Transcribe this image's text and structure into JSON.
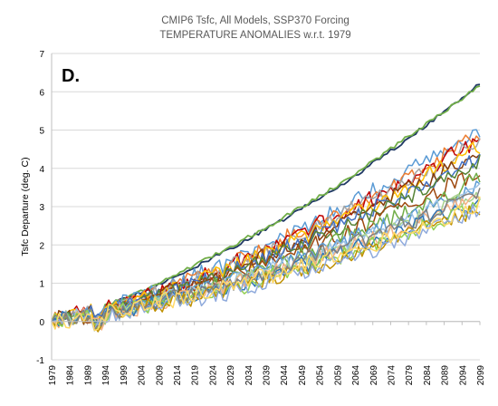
{
  "chart_data": {
    "type": "line",
    "title": "CMIP6 Tsfc, All Models, SSP370 Forcing",
    "subtitle": "TEMPERATURE ANOMALIES w.r.t. 1979",
    "panel_label": "D.",
    "xlabel": "",
    "ylabel": "Tsfc Departure (deg. C)",
    "xlim": [
      1979,
      2099
    ],
    "ylim": [
      -1,
      7
    ],
    "yticks": [
      -1,
      0,
      1,
      2,
      3,
      4,
      5,
      6,
      7
    ],
    "xticks": [
      1979,
      1984,
      1989,
      1994,
      1999,
      2004,
      2009,
      2014,
      2019,
      2024,
      2029,
      2034,
      2039,
      2044,
      2049,
      2054,
      2059,
      2064,
      2069,
      2074,
      2079,
      2084,
      2089,
      2094,
      2099
    ],
    "grid": "horizontal",
    "legend": "none",
    "series": [
      {
        "values": [
          [
            1979,
            0
          ],
          [
            2000,
            0.6
          ],
          [
            2020,
            1.45
          ],
          [
            2040,
            2.45
          ],
          [
            2060,
            3.55
          ],
          [
            2080,
            4.85
          ],
          [
            2099,
            6.2
          ]
        ],
        "color": "#1f3864"
      },
      {
        "values": [
          [
            1979,
            0
          ],
          [
            2000,
            0.62
          ],
          [
            2020,
            1.5
          ],
          [
            2040,
            2.5
          ],
          [
            2060,
            3.6
          ],
          [
            2080,
            4.9
          ],
          [
            2099,
            6.15
          ]
        ],
        "color": "#70ad47"
      },
      {
        "values": [
          [
            1979,
            0
          ],
          [
            2000,
            0.5
          ],
          [
            2020,
            1.2
          ],
          [
            2040,
            2.0
          ],
          [
            2060,
            2.95
          ],
          [
            2080,
            3.95
          ],
          [
            2099,
            5.0
          ]
        ],
        "color": "#5b9bd5"
      },
      {
        "values": [
          [
            1979,
            0
          ],
          [
            2000,
            0.5
          ],
          [
            2020,
            1.15
          ],
          [
            2040,
            1.95
          ],
          [
            2060,
            2.85
          ],
          [
            2080,
            3.8
          ],
          [
            2099,
            4.85
          ]
        ],
        "color": "#ed7d31"
      },
      {
        "values": [
          [
            1979,
            0
          ],
          [
            2000,
            0.45
          ],
          [
            2020,
            1.1
          ],
          [
            2040,
            1.9
          ],
          [
            2060,
            2.8
          ],
          [
            2080,
            3.75
          ],
          [
            2099,
            4.75
          ]
        ],
        "color": "#c00000"
      },
      {
        "values": [
          [
            1979,
            0
          ],
          [
            2000,
            0.45
          ],
          [
            2020,
            1.1
          ],
          [
            2040,
            1.85
          ],
          [
            2060,
            2.75
          ],
          [
            2080,
            3.7
          ],
          [
            2099,
            4.65
          ]
        ],
        "color": "#a5a5a5"
      },
      {
        "values": [
          [
            1979,
            0
          ],
          [
            2000,
            0.45
          ],
          [
            2020,
            1.05
          ],
          [
            2040,
            1.8
          ],
          [
            2060,
            2.65
          ],
          [
            2080,
            3.6
          ],
          [
            2099,
            4.55
          ]
        ],
        "color": "#ffc000"
      },
      {
        "values": [
          [
            1979,
            0
          ],
          [
            2000,
            0.4
          ],
          [
            2020,
            1.0
          ],
          [
            2040,
            1.75
          ],
          [
            2060,
            2.6
          ],
          [
            2080,
            3.5
          ],
          [
            2099,
            4.45
          ]
        ],
        "color": "#843c0c"
      },
      {
        "values": [
          [
            1979,
            0
          ],
          [
            2000,
            0.4
          ],
          [
            2020,
            1.0
          ],
          [
            2040,
            1.7
          ],
          [
            2060,
            2.5
          ],
          [
            2080,
            3.4
          ],
          [
            2099,
            4.35
          ]
        ],
        "color": "#4472c4"
      },
      {
        "values": [
          [
            1979,
            0
          ],
          [
            2000,
            0.4
          ],
          [
            2020,
            0.95
          ],
          [
            2040,
            1.65
          ],
          [
            2060,
            2.45
          ],
          [
            2080,
            3.3
          ],
          [
            2099,
            4.2
          ]
        ],
        "color": "#548235"
      },
      {
        "values": [
          [
            1979,
            0
          ],
          [
            2000,
            0.35
          ],
          [
            2020,
            0.9
          ],
          [
            2040,
            1.55
          ],
          [
            2060,
            2.3
          ],
          [
            2080,
            3.1
          ],
          [
            2099,
            3.95
          ]
        ],
        "color": "#9e480e"
      },
      {
        "values": [
          [
            1979,
            0
          ],
          [
            2000,
            0.35
          ],
          [
            2020,
            0.85
          ],
          [
            2040,
            1.45
          ],
          [
            2060,
            2.15
          ],
          [
            2080,
            2.9
          ],
          [
            2099,
            3.7
          ]
        ],
        "color": "#70ad47"
      },
      {
        "values": [
          [
            1979,
            0
          ],
          [
            2000,
            0.35
          ],
          [
            2020,
            0.8
          ],
          [
            2040,
            1.4
          ],
          [
            2060,
            2.05
          ],
          [
            2080,
            2.8
          ],
          [
            2099,
            3.55
          ]
        ],
        "color": "#5b9bd5"
      },
      {
        "values": [
          [
            1979,
            0
          ],
          [
            2000,
            0.3
          ],
          [
            2020,
            0.8
          ],
          [
            2040,
            1.35
          ],
          [
            2060,
            2.0
          ],
          [
            2080,
            2.7
          ],
          [
            2099,
            3.45
          ]
        ],
        "color": "#9dc3e6"
      },
      {
        "values": [
          [
            1979,
            0
          ],
          [
            2000,
            0.3
          ],
          [
            2020,
            0.75
          ],
          [
            2040,
            1.3
          ],
          [
            2060,
            1.9
          ],
          [
            2080,
            2.6
          ],
          [
            2099,
            3.35
          ]
        ],
        "color": "#a9d18e"
      },
      {
        "values": [
          [
            1979,
            0
          ],
          [
            2000,
            0.3
          ],
          [
            2020,
            0.72
          ],
          [
            2040,
            1.25
          ],
          [
            2060,
            1.85
          ],
          [
            2080,
            2.55
          ],
          [
            2099,
            3.25
          ]
        ],
        "color": "#f4b183"
      },
      {
        "values": [
          [
            1979,
            0
          ],
          [
            2000,
            0.28
          ],
          [
            2020,
            0.7
          ],
          [
            2040,
            1.2
          ],
          [
            2060,
            1.8
          ],
          [
            2080,
            2.45
          ],
          [
            2099,
            3.15
          ]
        ],
        "color": "#2e75b6"
      },
      {
        "values": [
          [
            1979,
            0
          ],
          [
            2000,
            0.25
          ],
          [
            2020,
            0.65
          ],
          [
            2040,
            1.15
          ],
          [
            2060,
            1.7
          ],
          [
            2080,
            2.35
          ],
          [
            2099,
            3.05
          ]
        ],
        "color": "#92d050"
      },
      {
        "values": [
          [
            1979,
            0
          ],
          [
            2000,
            0.25
          ],
          [
            2020,
            0.65
          ],
          [
            2040,
            1.1
          ],
          [
            2060,
            1.65
          ],
          [
            2080,
            2.3
          ],
          [
            2099,
            2.95
          ]
        ],
        "color": "#bf9000"
      },
      {
        "values": [
          [
            1979,
            0
          ],
          [
            2000,
            0.22
          ],
          [
            2020,
            0.6
          ],
          [
            2040,
            1.05
          ],
          [
            2060,
            1.6
          ],
          [
            2080,
            2.2
          ],
          [
            2099,
            2.9
          ]
        ],
        "color": "#8faadc"
      },
      {
        "values": [
          [
            1979,
            0
          ],
          [
            2000,
            0.3
          ],
          [
            2020,
            0.75
          ],
          [
            2040,
            1.3
          ],
          [
            2060,
            1.95
          ],
          [
            2080,
            2.6
          ],
          [
            2099,
            3.4
          ]
        ],
        "color": "#7f7f7f"
      },
      {
        "values": [
          [
            1979,
            0
          ],
          [
            2000,
            0.3
          ],
          [
            2020,
            0.7
          ],
          [
            2040,
            1.2
          ],
          [
            2060,
            1.75
          ],
          [
            2080,
            2.4
          ],
          [
            2099,
            3.1
          ]
        ],
        "color": "#ffd966"
      }
    ]
  }
}
